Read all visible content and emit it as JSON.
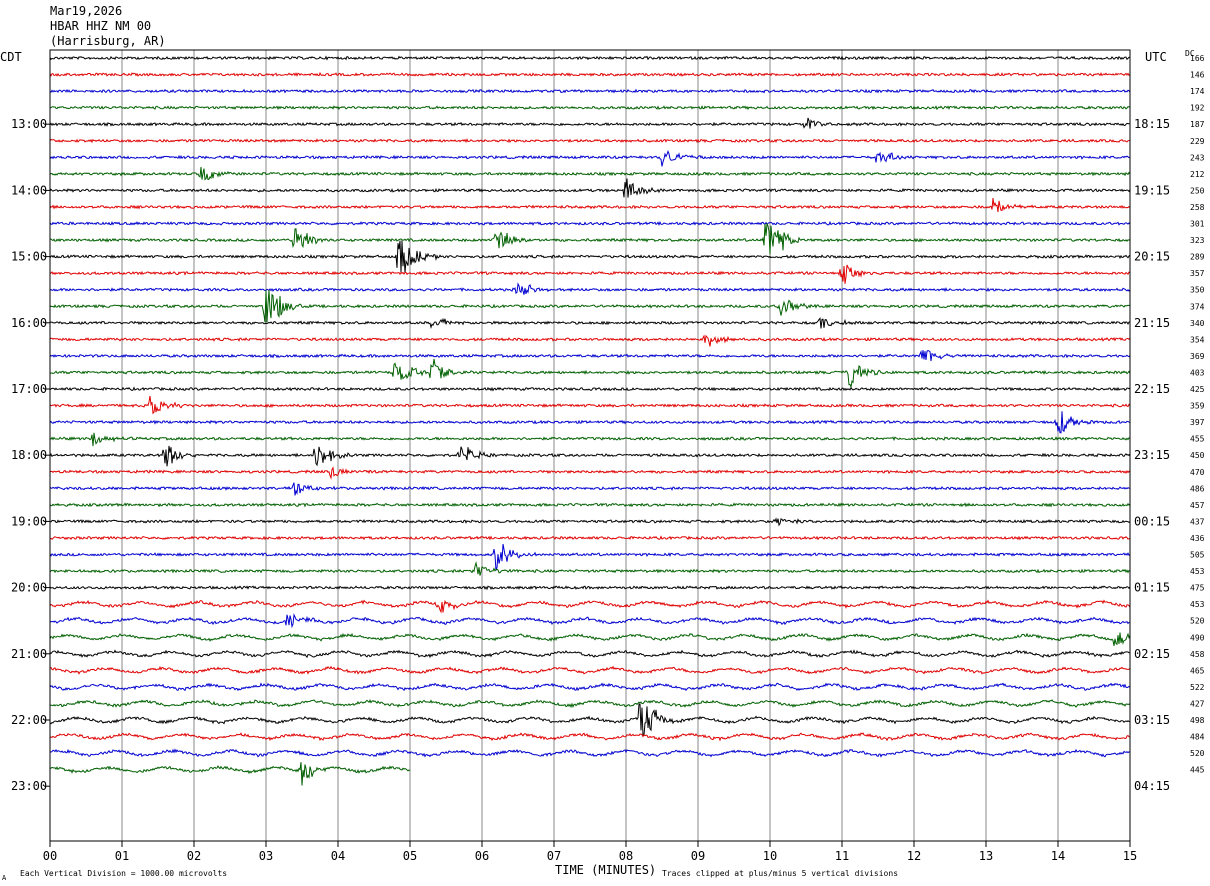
{
  "header": {
    "date": "Mar19,2026",
    "station": "HBAR HHZ NM 00",
    "location": "(Harrisburg, AR)"
  },
  "labels": {
    "left_tz": "CDT",
    "right_tz": "UTC",
    "dc": "DC",
    "xlabel": "TIME (MINUTES)",
    "scale_note": "Each Vertical Division = 1000.00 microvolts",
    "clip_note": "Traces clipped at plus/minus 5 vertical divisions",
    "corner_mark": "A"
  },
  "chart_data": {
    "type": "line",
    "title": "HBAR HHZ NM 00",
    "xlabel": "TIME (MINUTES)",
    "xlim": [
      0,
      15
    ],
    "x_ticks": [
      "00",
      "01",
      "02",
      "03",
      "04",
      "05",
      "06",
      "07",
      "08",
      "09",
      "10",
      "11",
      "12",
      "13",
      "14",
      "15"
    ],
    "trace_colors": [
      "#000000",
      "#e00000",
      "#0000d0",
      "#006000"
    ],
    "cdt_hour_labels": [
      "13:00",
      "14:00",
      "15:00",
      "16:00",
      "17:00",
      "18:00",
      "19:00",
      "20:00",
      "21:00",
      "22:00",
      "23:00"
    ],
    "utc_hour_labels": [
      "18:15",
      "19:15",
      "20:15",
      "21:15",
      "22:15",
      "23:15",
      "00:15",
      "01:15",
      "02:15",
      "03:15",
      "04:15"
    ],
    "dc_offsets": [
      "166",
      "146",
      "174",
      "192",
      "187",
      "229",
      "243",
      "212",
      "250",
      "258",
      "301",
      "323",
      "289",
      "357",
      "350",
      "374",
      "340",
      "354",
      "369",
      "403",
      "425",
      "359",
      "397",
      "455",
      "450",
      "470",
      "486",
      "457",
      "437",
      "436",
      "505",
      "453",
      "475",
      "453",
      "520",
      "490",
      "458",
      "465",
      "522",
      "427",
      "498",
      "484",
      "520",
      "445"
    ],
    "events": [
      {
        "trace": 4,
        "minute": 10.5,
        "amp": 0.4
      },
      {
        "trace": 6,
        "minute": 8.5,
        "amp": 0.7
      },
      {
        "trace": 6,
        "minute": 11.5,
        "amp": 0.6
      },
      {
        "trace": 7,
        "minute": 2.1,
        "amp": 0.7
      },
      {
        "trace": 8,
        "minute": 8.0,
        "amp": 0.8
      },
      {
        "trace": 9,
        "minute": 13.1,
        "amp": 0.7
      },
      {
        "trace": 11,
        "minute": 3.4,
        "amp": 1.2
      },
      {
        "trace": 11,
        "minute": 6.2,
        "amp": 1.0
      },
      {
        "trace": 11,
        "minute": 9.95,
        "amp": 2.0
      },
      {
        "trace": 12,
        "minute": 4.85,
        "amp": 1.8
      },
      {
        "trace": 13,
        "minute": 11.0,
        "amp": 0.8
      },
      {
        "trace": 14,
        "minute": 6.5,
        "amp": 0.6
      },
      {
        "trace": 15,
        "minute": 3.0,
        "amp": 2.0
      },
      {
        "trace": 15,
        "minute": 10.15,
        "amp": 0.7
      },
      {
        "trace": 16,
        "minute": 5.3,
        "amp": 0.5
      },
      {
        "trace": 16,
        "minute": 10.7,
        "amp": 0.5
      },
      {
        "trace": 17,
        "minute": 9.1,
        "amp": 0.5
      },
      {
        "trace": 18,
        "minute": 12.1,
        "amp": 0.7
      },
      {
        "trace": 19,
        "minute": 4.8,
        "amp": 1.0
      },
      {
        "trace": 19,
        "minute": 5.3,
        "amp": 1.0
      },
      {
        "trace": 19,
        "minute": 11.1,
        "amp": 1.0
      },
      {
        "trace": 21,
        "minute": 1.4,
        "amp": 0.8
      },
      {
        "trace": 22,
        "minute": 14.0,
        "amp": 1.0
      },
      {
        "trace": 23,
        "minute": 0.6,
        "amp": 0.5
      },
      {
        "trace": 24,
        "minute": 1.6,
        "amp": 1.0
      },
      {
        "trace": 24,
        "minute": 3.7,
        "amp": 1.0
      },
      {
        "trace": 24,
        "minute": 5.7,
        "amp": 0.8
      },
      {
        "trace": 25,
        "minute": 3.9,
        "amp": 0.5
      },
      {
        "trace": 26,
        "minute": 3.4,
        "amp": 0.6
      },
      {
        "trace": 28,
        "minute": 10.1,
        "amp": 0.4
      },
      {
        "trace": 30,
        "minute": 6.2,
        "amp": 1.2
      },
      {
        "trace": 31,
        "minute": 5.9,
        "amp": 0.6
      },
      {
        "trace": 33,
        "minute": 5.4,
        "amp": 0.6
      },
      {
        "trace": 34,
        "minute": 3.3,
        "amp": 0.6
      },
      {
        "trace": 35,
        "minute": 14.8,
        "amp": 0.6
      },
      {
        "trace": 40,
        "minute": 8.2,
        "amp": 2.0
      },
      {
        "trace": 43,
        "minute": 3.5,
        "amp": 1.0
      }
    ],
    "last_trace_end_minute": 5.0
  }
}
